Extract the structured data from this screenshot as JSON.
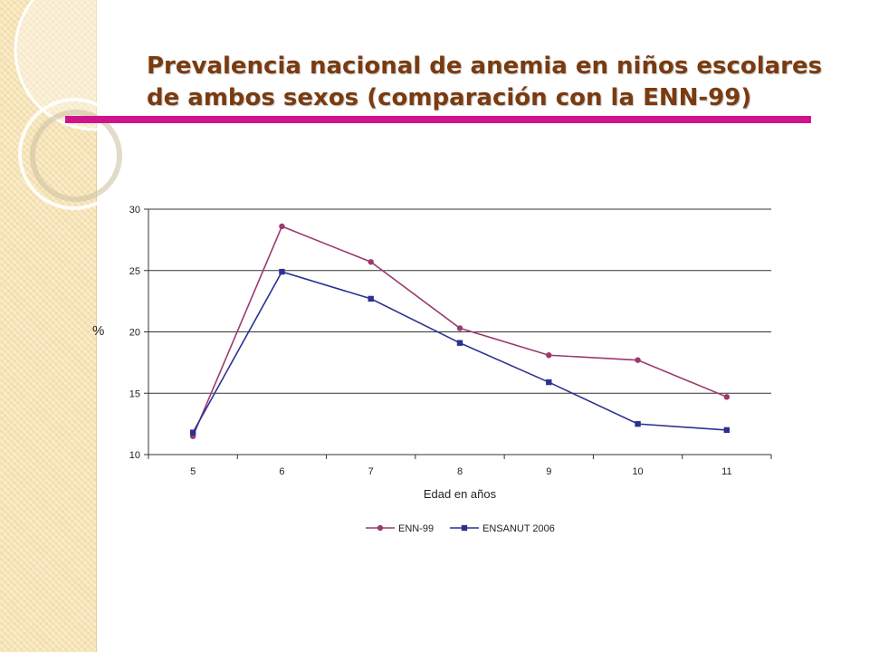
{
  "slide": {
    "title_line1": "Prevalencia nacional de anemia en niños escolares",
    "title_line2": "de ambos sexos (comparación con la ENN-99)",
    "accent_color": "#d0138c",
    "title_color": "#7a3b10"
  },
  "chart_data": {
    "type": "line",
    "title": "",
    "xlabel": "Edad en años",
    "ylabel": "%",
    "x": [
      "5",
      "6",
      "7",
      "8",
      "9",
      "10",
      "11"
    ],
    "ylim": [
      10,
      30
    ],
    "yticks": [
      10,
      15,
      20,
      25,
      30
    ],
    "grid": true,
    "legend_position": "bottom",
    "series": [
      {
        "name": "ENN-99",
        "color": "#9b3a6e",
        "marker": "circle",
        "values": [
          11.5,
          28.6,
          25.7,
          20.3,
          18.1,
          17.7,
          14.7
        ]
      },
      {
        "name": "ENSANUT 2006",
        "color": "#2e3192",
        "marker": "square",
        "values": [
          11.8,
          24.9,
          22.7,
          19.1,
          15.9,
          12.5,
          12.0
        ]
      }
    ]
  }
}
